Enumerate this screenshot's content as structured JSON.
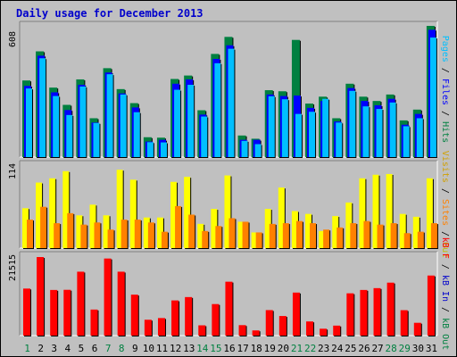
{
  "title": "Daily usage for December 2013",
  "colors": {
    "background": "#c0c0c0",
    "title": "#0000cc",
    "hits": "#00bfff",
    "files": "#0000ff",
    "pages": "#008040",
    "visits": "#ffff00",
    "sites": "#ff8000",
    "kbin": "#ff0000",
    "weekday_label": "#000000",
    "weekend_label": "#008040"
  },
  "chart_data": [
    {
      "type": "bar",
      "name": "hits-files-pages",
      "categories": [
        "1",
        "2",
        "3",
        "4",
        "5",
        "6",
        "7",
        "8",
        "9",
        "10",
        "11",
        "12",
        "13",
        "14",
        "15",
        "16",
        "17",
        "18",
        "19",
        "20",
        "21",
        "22",
        "23",
        "24",
        "25",
        "26",
        "27",
        "28",
        "29",
        "30",
        "31"
      ],
      "weekend_days": [
        "1",
        "7",
        "8",
        "14",
        "15",
        "21",
        "22",
        "28",
        "29"
      ],
      "ylim": [
        0,
        608
      ],
      "max_label": "608",
      "legend": [
        "Pages",
        "Files",
        "Hits"
      ],
      "series": [
        {
          "name": "Pages",
          "values": [
            355,
            490,
            322,
            242,
            360,
            180,
            412,
            315,
            250,
            92,
            90,
            362,
            378,
            217,
            478,
            557,
            100,
            85,
            310,
            305,
            543,
            248,
            280,
            180,
            340,
            280,
            260,
            290,
            170,
            220,
            608
          ]
        },
        {
          "name": "Files",
          "values": [
            330,
            470,
            300,
            218,
            335,
            160,
            392,
            295,
            230,
            72,
            80,
            340,
            360,
            197,
            455,
            518,
            80,
            80,
            290,
            283,
            285,
            228,
            260,
            165,
            320,
            260,
            240,
            270,
            150,
            200,
            590
          ]
        },
        {
          "name": "Hits",
          "values": [
            318,
            458,
            283,
            195,
            327,
            158,
            384,
            290,
            208,
            69,
            68,
            312,
            335,
            188,
            435,
            502,
            75,
            60,
            282,
            268,
            200,
            210,
            270,
            160,
            307,
            235,
            223,
            253,
            143,
            180,
            554
          ]
        }
      ]
    },
    {
      "type": "bar",
      "name": "visits-sites",
      "categories": [
        "1",
        "2",
        "3",
        "4",
        "5",
        "6",
        "7",
        "8",
        "9",
        "10",
        "11",
        "12",
        "13",
        "14",
        "15",
        "16",
        "17",
        "18",
        "19",
        "20",
        "21",
        "22",
        "23",
        "24",
        "25",
        "26",
        "27",
        "28",
        "29",
        "30",
        "31"
      ],
      "ylim": [
        0,
        114
      ],
      "max_label": "114",
      "legend": [
        "Visits",
        "Sites",
        "Out"
      ],
      "series": [
        {
          "name": "Visits",
          "values": [
            56,
            92,
            98,
            108,
            46,
            61,
            46,
            110,
            96,
            43,
            43,
            93,
            100,
            34,
            55,
            102,
            37,
            22,
            55,
            85,
            52,
            48,
            24,
            45,
            64,
            98,
            103,
            104,
            48,
            44,
            98
          ]
        },
        {
          "name": "Sites",
          "values": [
            40,
            58,
            35,
            49,
            33,
            36,
            26,
            40,
            40,
            36,
            23,
            59,
            47,
            24,
            31,
            42,
            37,
            22,
            34,
            35,
            38,
            35,
            26,
            29,
            35,
            38,
            33,
            35,
            21,
            23,
            35
          ]
        }
      ]
    },
    {
      "type": "bar",
      "name": "kbin",
      "categories": [
        "1",
        "2",
        "3",
        "4",
        "5",
        "6",
        "7",
        "8",
        "9",
        "10",
        "11",
        "12",
        "13",
        "14",
        "15",
        "16",
        "17",
        "18",
        "19",
        "20",
        "21",
        "22",
        "23",
        "24",
        "25",
        "26",
        "27",
        "28",
        "29",
        "30",
        "31"
      ],
      "ylim": [
        0,
        21515
      ],
      "max_label": "21515",
      "legend": [
        "kB F",
        "kB In",
        "kB Out"
      ],
      "series": [
        {
          "name": "kB F",
          "values": [
            12880,
            21515,
            12500,
            12540,
            17500,
            7130,
            21110,
            17500,
            11210,
            4340,
            4800,
            9630,
            10550,
            2810,
            8630,
            14760,
            2860,
            1410,
            6980,
            5360,
            11780,
            3870,
            1880,
            2730,
            11580,
            12500,
            13000,
            14500,
            6960,
            3500,
            16450
          ]
        }
      ]
    }
  ]
}
